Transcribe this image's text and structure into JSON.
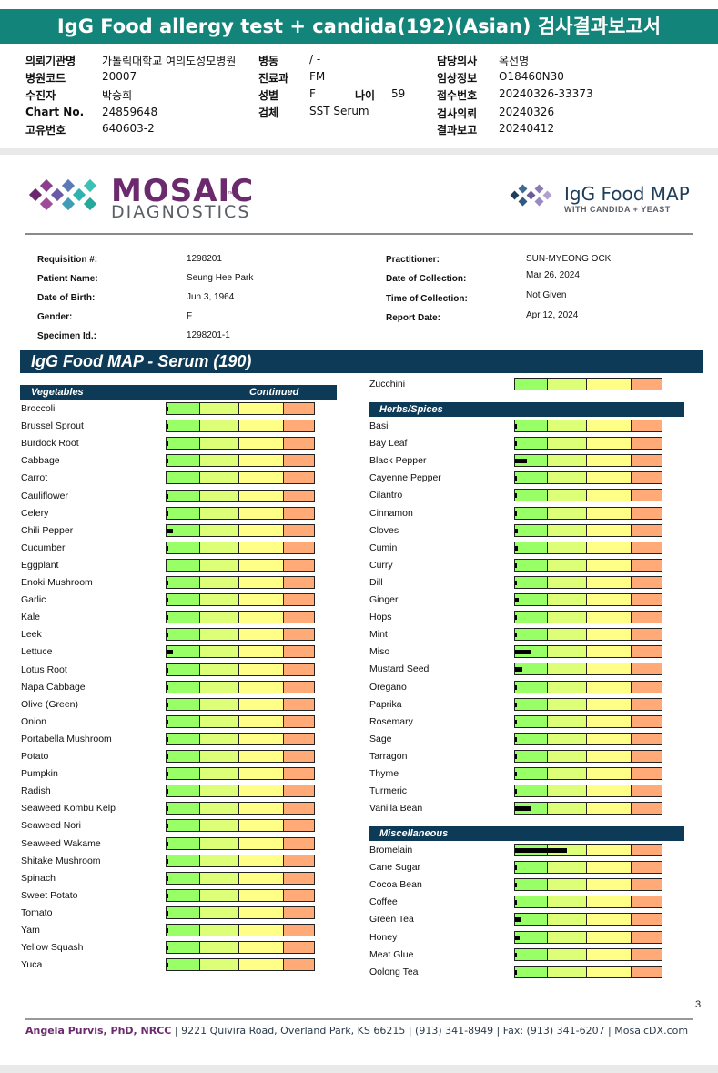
{
  "korean_header": {
    "title": "IgG Food allergy test + candida(192)(Asian) 검사결과보고서",
    "fields": [
      {
        "label": "의뢰기관명",
        "value": "가톨릭대학교 여의도성모병원"
      },
      {
        "label": "병원코드",
        "value": "20007"
      },
      {
        "label": "수진자",
        "value": "박승희"
      },
      {
        "label": "Chart No.",
        "value": "24859648"
      },
      {
        "label": "고유번호",
        "value": "640603-2"
      },
      {
        "label": "병동",
        "value": "/ -"
      },
      {
        "label": "진료과",
        "value": "FM"
      },
      {
        "label": "성별",
        "value": "F"
      },
      {
        "label": "나이",
        "value": "59"
      },
      {
        "label": "검체",
        "value": "SST Serum"
      },
      {
        "label": "담당의사",
        "value": "옥선명"
      },
      {
        "label": "임상정보",
        "value": "O18460N30"
      },
      {
        "label": "접수번호",
        "value": "20240326-33373"
      },
      {
        "label": "검사의뢰",
        "value": "20240326"
      },
      {
        "label": "결과보고",
        "value": "20240412"
      }
    ]
  },
  "logo": {
    "main": "MOSAIC",
    "tm": "™",
    "sub": "DIAGNOSTICS"
  },
  "product_logo": {
    "title": "IgG Food MAP",
    "subtitle": "WITH CANDIDA + YEAST"
  },
  "requisition": {
    "left": [
      {
        "label": "Requisition #:",
        "value": "1298201"
      },
      {
        "label": "Patient Name:",
        "value": "Seung Hee Park"
      },
      {
        "label": "Date of Birth:",
        "value": "Jun 3, 1964"
      },
      {
        "label": "Gender:",
        "value": "F"
      },
      {
        "label": "Specimen Id.:",
        "value": "1298201-1"
      }
    ],
    "right": [
      {
        "label": "Practitioner:",
        "value": "SUN-MYEONG OCK"
      },
      {
        "label": "Date of Collection:",
        "value": "Mar 26, 2024"
      },
      {
        "label": "Time of Collection:",
        "value": "Not Given"
      },
      {
        "label": "Report Date:",
        "value": "Apr 12, 2024"
      }
    ]
  },
  "section_title": "IgG Food MAP - Serum (190)",
  "vegetables_header": {
    "label": "Vegetables",
    "continued": "Continued"
  },
  "vegetables": [
    {
      "name": "Broccoli",
      "level": 0.015
    },
    {
      "name": "Brussel Sprout",
      "level": 0.015
    },
    {
      "name": "Burdock Root",
      "level": 0.006
    },
    {
      "name": "Cabbage",
      "level": 0.015
    },
    {
      "name": "Carrot",
      "level": 0.0
    },
    {
      "name": "Cauliflower",
      "level": 0.012
    },
    {
      "name": "Celery",
      "level": 0.012
    },
    {
      "name": "Chili Pepper",
      "level": 0.04
    },
    {
      "name": "Cucumber",
      "level": 0.006
    },
    {
      "name": "Eggplant",
      "level": 0.0
    },
    {
      "name": "Enoki Mushroom",
      "level": 0.012
    },
    {
      "name": "Garlic",
      "level": 0.015
    },
    {
      "name": "Kale",
      "level": 0.012
    },
    {
      "name": "Leek",
      "level": 0.006
    },
    {
      "name": "Lettuce",
      "level": 0.04
    },
    {
      "name": "Lotus Root",
      "level": 0.006
    },
    {
      "name": "Napa Cabbage",
      "level": 0.015
    },
    {
      "name": "Olive (Green)",
      "level": 0.006
    },
    {
      "name": "Onion",
      "level": 0.006
    },
    {
      "name": "Portabella Mushroom",
      "level": 0.006
    },
    {
      "name": "Potato",
      "level": 0.015
    },
    {
      "name": "Pumpkin",
      "level": 0.006
    },
    {
      "name": "Radish",
      "level": 0.015
    },
    {
      "name": "Seaweed Kombu Kelp",
      "level": 0.006
    },
    {
      "name": "Seaweed Nori",
      "level": 0.015
    },
    {
      "name": "Seaweed Wakame",
      "level": 0.006
    },
    {
      "name": "Shitake Mushroom",
      "level": 0.006
    },
    {
      "name": "Spinach",
      "level": 0.006
    },
    {
      "name": "Sweet Potato",
      "level": 0.006
    },
    {
      "name": "Tomato",
      "level": 0.015
    },
    {
      "name": "Yam",
      "level": 0.006
    },
    {
      "name": "Yellow Squash",
      "level": 0.015
    },
    {
      "name": "Yuca",
      "level": 0.006
    }
  ],
  "zucchini": {
    "name": "Zucchini",
    "level": 0.0
  },
  "herbs_header": "Herbs/Spices",
  "herbs": [
    {
      "name": "Basil",
      "level": 0.006
    },
    {
      "name": "Bay Leaf",
      "level": 0.006
    },
    {
      "name": "Black Pepper",
      "level": 0.08
    },
    {
      "name": "Cayenne Pepper",
      "level": 0.012
    },
    {
      "name": "Cilantro",
      "level": 0.006
    },
    {
      "name": "Cinnamon",
      "level": 0.015
    },
    {
      "name": "Cloves",
      "level": 0.02
    },
    {
      "name": "Cumin",
      "level": 0.02
    },
    {
      "name": "Curry",
      "level": 0.006
    },
    {
      "name": "Dill",
      "level": 0.006
    },
    {
      "name": "Ginger",
      "level": 0.025
    },
    {
      "name": "Hops",
      "level": 0.006
    },
    {
      "name": "Mint",
      "level": 0.006
    },
    {
      "name": "Miso",
      "level": 0.11
    },
    {
      "name": "Mustard Seed",
      "level": 0.05
    },
    {
      "name": "Oregano",
      "level": 0.006
    },
    {
      "name": "Paprika",
      "level": 0.012
    },
    {
      "name": "Rosemary",
      "level": 0.006
    },
    {
      "name": "Sage",
      "level": 0.015
    },
    {
      "name": "Tarragon",
      "level": 0.015
    },
    {
      "name": "Thyme",
      "level": 0.006
    },
    {
      "name": "Turmeric",
      "level": 0.012
    },
    {
      "name": "Vanilla Bean",
      "level": 0.11
    }
  ],
  "misc_header": "Miscellaneous",
  "misc": [
    {
      "name": "Bromelain",
      "level": 0.35
    },
    {
      "name": "Cane Sugar",
      "level": 0.006
    },
    {
      "name": "Cocoa Bean",
      "level": 0.012
    },
    {
      "name": "Coffee",
      "level": 0.006
    },
    {
      "name": "Green Tea",
      "level": 0.04
    },
    {
      "name": "Honey",
      "level": 0.03
    },
    {
      "name": "Meat Glue",
      "level": 0.006
    },
    {
      "name": "Oolong Tea",
      "level": 0.012
    }
  ],
  "page_number": "3",
  "footer": {
    "name": "Angela Purvis, PhD, NRCC",
    "address": " | 9221 Quivira Road, Overland Park, KS 66215  |  (913) 341-8949  |  Fax: (913) 341-6207 | MosaicDX.com"
  },
  "colors": {
    "header_teal": "#138479",
    "navy": "#0d3a56",
    "zone1": "#99ff66",
    "zone2": "#ddff77",
    "zone3": "#ffff88",
    "zone4": "#ffaa77",
    "brand_purple": "#6b2a6e"
  }
}
